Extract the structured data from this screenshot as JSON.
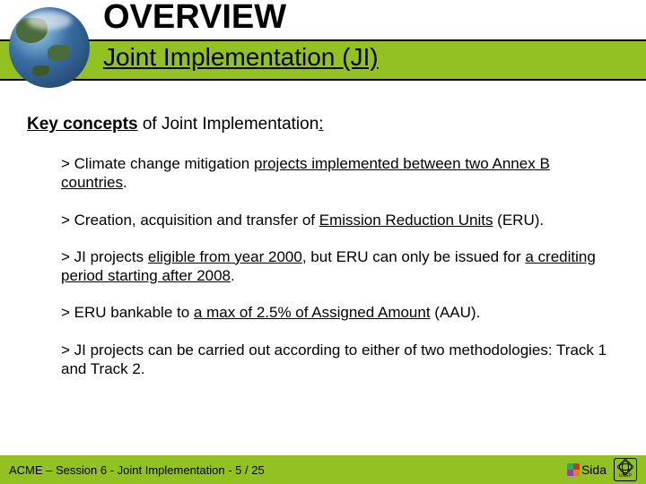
{
  "header": {
    "title": "OVERVIEW",
    "subtitle": "Joint Implementation (JI)",
    "bar_color": "#94c122",
    "border_color": "#000000"
  },
  "content": {
    "heading_bold_underlined": "Key concepts",
    "heading_rest": " of Joint Implementation",
    "heading_trailing_underlined": ":",
    "bullets": [
      {
        "pre": "> Climate change mitigation ",
        "u1": "projects implemented between two Annex B countries",
        "post": "."
      },
      {
        "pre": "> Creation, acquisition and transfer of ",
        "u1": "Emission Reduction Units",
        "post": " (ERU)."
      },
      {
        "pre": "> JI projects ",
        "u1": "eligible from year 2000",
        "mid": ", but ERU can only be issued for ",
        "u2": "a crediting period starting after 2008",
        "post": "."
      },
      {
        "pre": "> ERU bankable to ",
        "u1": "a max of 2.5% of Assigned Amount",
        "post": " (AAU)."
      },
      {
        "pre": "> JI projects can be carried out according to either of two methodologies: Track 1 and Track 2.",
        "u1": "",
        "post": ""
      }
    ]
  },
  "footer": {
    "text": "ACME – Session 6 - Joint Implementation - 5 / 25",
    "sida_label": "Sida",
    "unep_label": "UNEP",
    "bg_color": "#94c122"
  }
}
